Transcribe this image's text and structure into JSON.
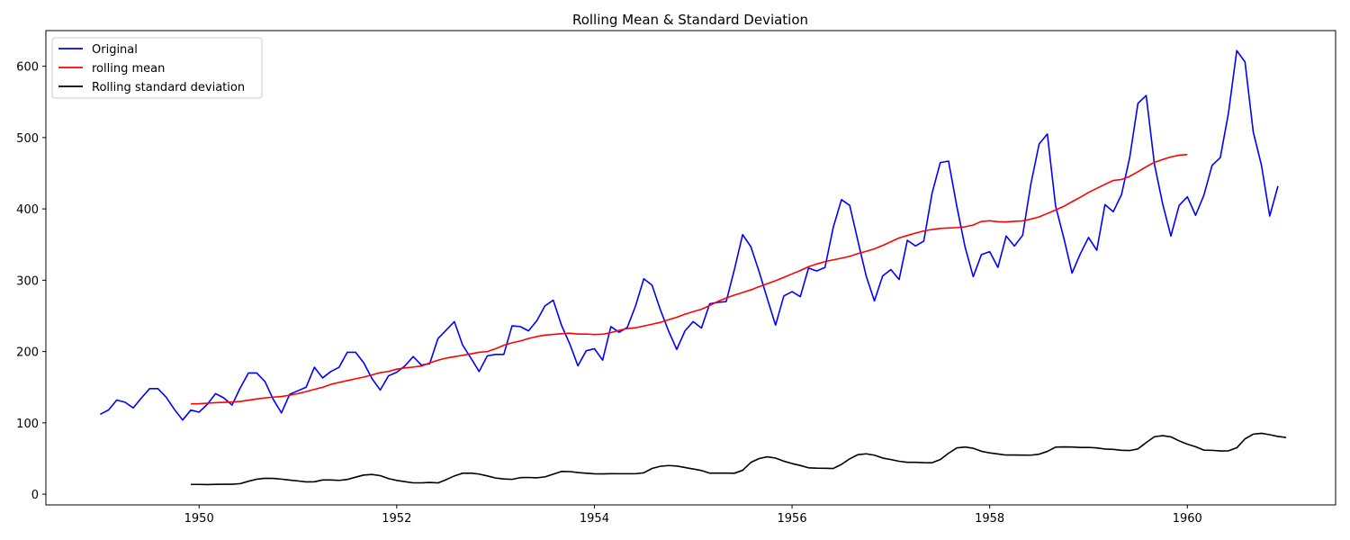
{
  "chart_data": {
    "type": "line",
    "title": "Rolling Mean & Standard Deviation",
    "xlabel": "",
    "ylabel": "",
    "xlim": [
      1948.45,
      1961.5
    ],
    "ylim": [
      -15,
      650
    ],
    "x_ticks": [
      1950,
      1952,
      1954,
      1956,
      1958,
      1960
    ],
    "y_ticks": [
      0,
      100,
      200,
      300,
      400,
      500,
      600
    ],
    "grid": false,
    "legend_position": "top-left",
    "x_start": 1949.0,
    "x_step_months": 1,
    "series": [
      {
        "name": "Original",
        "color": "#0000ff",
        "start_index": 0,
        "values": [
          112,
          118,
          132,
          129,
          121,
          135,
          148,
          148,
          136,
          119,
          104,
          118,
          115,
          126,
          141,
          135,
          125,
          149,
          170,
          170,
          158,
          133,
          114,
          140,
          145,
          150,
          178,
          163,
          172,
          178,
          199,
          199,
          184,
          162,
          146,
          166,
          171,
          180,
          193,
          181,
          183,
          218,
          230,
          242,
          209,
          191,
          172,
          194,
          196,
          196,
          236,
          235,
          229,
          243,
          264,
          272,
          237,
          211,
          180,
          201,
          204,
          188,
          235,
          227,
          234,
          264,
          302,
          293,
          259,
          229,
          203,
          229,
          242,
          233,
          267,
          269,
          270,
          315,
          364,
          347,
          312,
          274,
          237,
          278,
          284,
          277,
          317,
          313,
          318,
          374,
          413,
          405,
          355,
          306,
          271,
          306,
          315,
          301,
          356,
          348,
          355,
          422,
          465,
          467,
          404,
          347,
          305,
          336,
          340,
          318,
          362,
          348,
          363,
          435,
          491,
          505,
          404,
          359,
          310,
          337,
          360,
          342,
          406,
          396,
          420,
          472,
          548,
          559,
          463,
          407,
          362,
          405,
          417,
          391,
          419,
          461,
          472,
          535,
          622,
          606,
          508,
          461,
          390,
          432
        ]
      },
      {
        "name": "rolling mean",
        "color": "#ff0000",
        "start_index": 11,
        "values": [
          126.7,
          126.9,
          127.6,
          128.3,
          128.8,
          129.2,
          130.0,
          131.8,
          133.5,
          135.0,
          136.1,
          137.0,
          138.8,
          141.0,
          143.8,
          147.0,
          149.8,
          154.0,
          156.8,
          159.2,
          161.8,
          164.2,
          167.3,
          170.4,
          172.1,
          175.3,
          177.0,
          178.2,
          179.7,
          184.1,
          187.8,
          190.8,
          192.8,
          194.8,
          196.8,
          199.0,
          200.0,
          204.0,
          208.8,
          212.3,
          214.8,
          218.3,
          221.0,
          223.1,
          224.0,
          225.0,
          225.8,
          224.5,
          224.6,
          223.9,
          224.3,
          226.5,
          229.8,
          232.3,
          233.3,
          235.8,
          238.3,
          240.9,
          244.6,
          248.1,
          252.4,
          256.0,
          259.3,
          264.7,
          270.3,
          275.1,
          279.2,
          282.8,
          286.5,
          291.0,
          295.1,
          299.3,
          304.0,
          308.9,
          313.6,
          318.9,
          322.8,
          326.0,
          328.5,
          330.9,
          333.4,
          337.4,
          340.5,
          344.0,
          348.7,
          353.9,
          359.3,
          362.7,
          366.1,
          369.1,
          371.1,
          372.6,
          373.3,
          373.8,
          374.9,
          377.4,
          382.4,
          383.3,
          382.1,
          381.8,
          382.6,
          383.2,
          385.7,
          388.8,
          393.6,
          398.4,
          403.6,
          410.1,
          416.3,
          423.1,
          428.8,
          434.5,
          439.9,
          441.2,
          445.6,
          452.1,
          459.1,
          465.3,
          469.3,
          472.9,
          475.3,
          476.2
        ]
      },
      {
        "name": "Rolling standard deviation",
        "color": "#000000",
        "start_index": 11,
        "values": [
          13.7,
          13.7,
          13.5,
          13.8,
          13.9,
          13.9,
          14.8,
          18.2,
          21.0,
          22.3,
          22.1,
          21.1,
          19.8,
          18.6,
          17.3,
          17.4,
          19.9,
          19.9,
          19.4,
          20.7,
          23.9,
          26.9,
          27.7,
          26.0,
          21.9,
          19.3,
          17.6,
          15.9,
          15.9,
          16.5,
          15.8,
          20.4,
          25.6,
          29.4,
          29.6,
          28.2,
          25.6,
          22.7,
          21.3,
          20.8,
          23.2,
          23.5,
          23.0,
          24.3,
          28.1,
          31.9,
          31.7,
          30.4,
          29.4,
          28.6,
          28.5,
          28.8,
          28.7,
          28.7,
          28.7,
          30.0,
          36.1,
          39.1,
          40.2,
          39.5,
          37.4,
          35.4,
          33.2,
          29.5,
          29.5,
          29.6,
          29.4,
          33.5,
          44.6,
          50.0,
          52.4,
          50.6,
          46.3,
          43.0,
          40.3,
          37.0,
          36.5,
          36.3,
          36.0,
          41.8,
          49.6,
          55.4,
          56.6,
          54.7,
          50.7,
          48.6,
          46.2,
          44.7,
          44.7,
          44.2,
          44.1,
          48.6,
          57.4,
          64.9,
          66.2,
          64.4,
          60.2,
          57.9,
          56.4,
          54.9,
          54.9,
          54.8,
          54.7,
          56.1,
          60.0,
          66.0,
          66.3,
          66.1,
          65.5,
          65.6,
          64.9,
          63.3,
          62.8,
          61.6,
          61.2,
          63.5,
          72.4,
          80.6,
          82.1,
          80.4,
          74.8,
          70.2,
          66.6,
          61.8,
          61.5,
          60.6,
          60.8,
          65.1,
          77.6,
          84.2,
          85.4,
          83.4,
          81.0,
          79.5
        ]
      }
    ]
  }
}
